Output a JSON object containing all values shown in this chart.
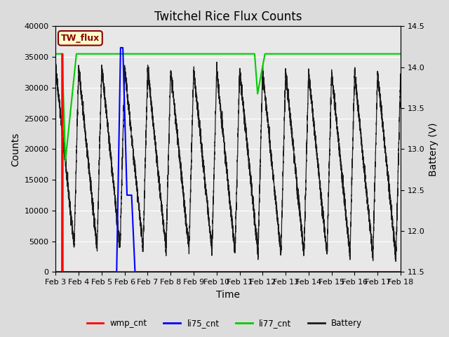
{
  "title": "Twitchel Rice Flux Counts",
  "xlabel": "Time",
  "ylabel_left": "Counts",
  "ylabel_right": "Battery (V)",
  "ylim_left": [
    0,
    40000
  ],
  "ylim_right": [
    11.5,
    14.5
  ],
  "xlim": [
    0,
    15
  ],
  "xtick_labels": [
    "Feb 3",
    "Feb 4",
    "Feb 5",
    "Feb 6",
    "Feb 7",
    "Feb 8",
    "Feb 9",
    "Feb 10",
    "Feb 11",
    "Feb 12",
    "Feb 13",
    "Feb 14",
    "Feb 15",
    "Feb 16",
    "Feb 17",
    "Feb 18"
  ],
  "xtick_positions": [
    0,
    1,
    2,
    3,
    4,
    5,
    6,
    7,
    8,
    9,
    10,
    11,
    12,
    13,
    14,
    15
  ],
  "background_color": "#dcdcdc",
  "plot_bg_color": "#e8e8e8",
  "title_fontsize": 12,
  "axis_label_fontsize": 10,
  "tick_fontsize": 8,
  "legend_label": "TW_flux",
  "legend_bg": "#ffffcc",
  "legend_border": "#8b0000",
  "series": {
    "wmp_cnt": {
      "color": "#ff0000"
    },
    "li75_cnt": {
      "color": "#0000ff"
    },
    "li77_cnt": {
      "color": "#00cc00"
    },
    "Battery": {
      "color": "#1a1a1a"
    }
  },
  "li77_level": 35500,
  "battery_scale_min": 11.5,
  "battery_scale_max": 14.5,
  "yticks_left": [
    0,
    5000,
    10000,
    15000,
    20000,
    25000,
    30000,
    35000,
    40000
  ],
  "yticks_right": [
    11.5,
    12.0,
    12.5,
    13.0,
    13.5,
    14.0,
    14.5
  ]
}
